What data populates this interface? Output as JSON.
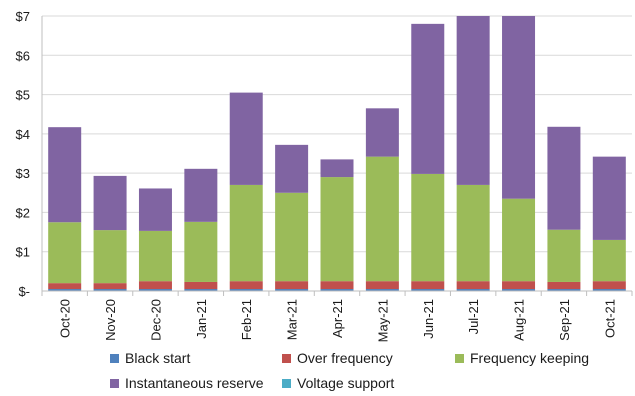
{
  "chart_data": {
    "type": "bar",
    "stacked": true,
    "title": "",
    "xlabel": "",
    "ylabel": "",
    "ylim": [
      0,
      7
    ],
    "yticks": [
      "$-",
      "$1",
      "$2",
      "$3",
      "$4",
      "$5",
      "$6",
      "$7"
    ],
    "grid": true,
    "legend_position": "bottom",
    "categories": [
      "Oct-20",
      "Nov-20",
      "Dec-20",
      "Jan-21",
      "Feb-21",
      "Mar-21",
      "Apr-21",
      "May-21",
      "Jun-21",
      "Jul-21",
      "Aug-21",
      "Sep-21",
      "Oct-21"
    ],
    "series": [
      {
        "name": "Black start",
        "color": "#4f81bd",
        "values": [
          0.05,
          0.05,
          0.05,
          0.05,
          0.05,
          0.05,
          0.05,
          0.05,
          0.05,
          0.05,
          0.05,
          0.05,
          0.05
        ]
      },
      {
        "name": "Over frequency",
        "color": "#c0504d",
        "values": [
          0.15,
          0.15,
          0.2,
          0.18,
          0.2,
          0.2,
          0.2,
          0.2,
          0.2,
          0.2,
          0.2,
          0.18,
          0.2
        ]
      },
      {
        "name": "Frequency keeping",
        "color": "#9bbb59",
        "values": [
          1.55,
          1.35,
          1.28,
          1.53,
          2.45,
          2.25,
          2.65,
          3.17,
          2.73,
          2.45,
          2.1,
          1.33,
          1.05
        ]
      },
      {
        "name": "Instantaneous reserve",
        "color": "#8064a2",
        "values": [
          2.42,
          1.38,
          1.08,
          1.35,
          2.35,
          1.22,
          0.45,
          1.23,
          3.82,
          4.3,
          4.65,
          2.62,
          2.12
        ]
      },
      {
        "name": "Voltage support",
        "color": "#4bacc6",
        "values": [
          0,
          0,
          0,
          0,
          0,
          0,
          0,
          0,
          0,
          0,
          0,
          0,
          0
        ]
      }
    ]
  }
}
